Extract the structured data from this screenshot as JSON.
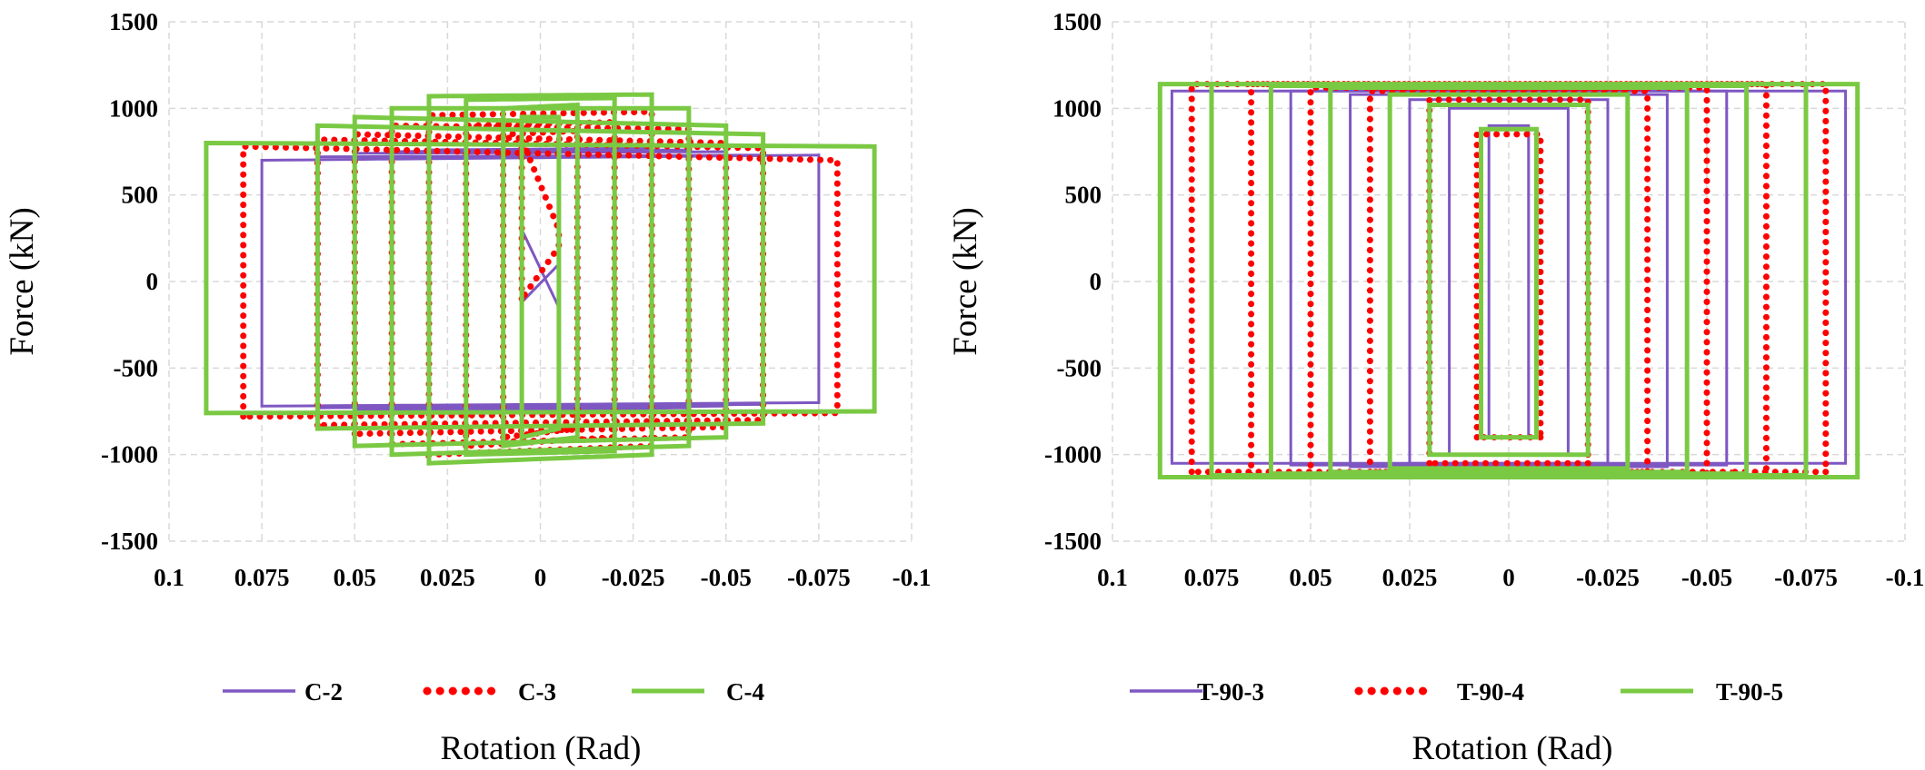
{
  "chart_data": [
    {
      "type": "line",
      "xlabel": "Rotation (Rad)",
      "ylabel": "Force (kN)",
      "xlim": [
        0.1,
        -0.1
      ],
      "ylim": [
        -1500,
        1500
      ],
      "x_ticks": [
        "0.1",
        "0.075",
        "0.05",
        "0.025",
        "0",
        "-0.025",
        "-0.05",
        "-0.075",
        "-0.1"
      ],
      "y_ticks": [
        "1500",
        "1000",
        "500",
        "0",
        "-500",
        "-1000",
        "-1500"
      ],
      "grid": true,
      "legend_position": "bottom",
      "series": [
        {
          "name": "C-2",
          "color": "#7e57c2",
          "style": "solid",
          "loops": [
            {
              "amp": 0.005,
              "top_pos": 300,
              "top_neg": -150,
              "bot_pos": -120,
              "bot_neg": 100
            },
            {
              "amp": 0.01,
              "top_pos": 730,
              "top_neg": 760,
              "bot_pos": -740,
              "bot_neg": -720
            },
            {
              "amp": 0.02,
              "top_pos": 740,
              "top_neg": 770,
              "bot_pos": -750,
              "bot_neg": -730
            },
            {
              "amp": 0.03,
              "top_pos": 760,
              "top_neg": 770,
              "bot_pos": -760,
              "bot_neg": -740
            },
            {
              "amp": 0.04,
              "top_pos": 750,
              "top_neg": 760,
              "bot_pos": -750,
              "bot_neg": -730
            },
            {
              "amp": 0.05,
              "top_pos": 740,
              "top_neg": 750,
              "bot_pos": -740,
              "bot_neg": -720
            },
            {
              "amp": 0.06,
              "top_pos": 720,
              "top_neg": 730,
              "bot_pos": -730,
              "bot_neg": -710
            },
            {
              "amp": 0.075,
              "top_pos": 700,
              "top_neg": 730,
              "bot_pos": -720,
              "bot_neg": -700
            }
          ]
        },
        {
          "name": "C-3",
          "color": "#ff0000",
          "style": "dotted",
          "loops": [
            {
              "amp": 0.005,
              "top_pos": 820,
              "top_neg": 300,
              "bot_pos": -100,
              "bot_neg": 200
            },
            {
              "amp": 0.01,
              "top_pos": 850,
              "top_neg": 870,
              "bot_pos": -900,
              "bot_neg": -850
            },
            {
              "amp": 0.02,
              "top_pos": 900,
              "top_neg": 920,
              "bot_pos": -950,
              "bot_neg": -900
            },
            {
              "amp": 0.03,
              "top_pos": 960,
              "top_neg": 980,
              "bot_pos": -1000,
              "bot_neg": -950
            },
            {
              "amp": 0.04,
              "top_pos": 900,
              "top_neg": 880,
              "bot_pos": -940,
              "bot_neg": -900
            },
            {
              "amp": 0.05,
              "top_pos": 850,
              "top_neg": 800,
              "bot_pos": -880,
              "bot_neg": -840
            },
            {
              "amp": 0.06,
              "top_pos": 820,
              "top_neg": 770,
              "bot_pos": -830,
              "bot_neg": -800
            },
            {
              "amp": 0.08,
              "top_pos": 780,
              "top_neg": 700,
              "bot_pos": -780,
              "bot_neg": -760
            }
          ]
        },
        {
          "name": "C-4",
          "color": "#7ac943",
          "style": "solid",
          "loops": [
            {
              "amp": 0.005,
              "top_pos": 950,
              "top_neg": 950,
              "bot_pos": -900,
              "bot_neg": -850
            },
            {
              "amp": 0.01,
              "top_pos": 1000,
              "top_neg": 1020,
              "bot_pos": -950,
              "bot_neg": -900
            },
            {
              "amp": 0.02,
              "top_pos": 1050,
              "top_neg": 1060,
              "bot_pos": -1000,
              "bot_neg": -980
            },
            {
              "amp": 0.03,
              "top_pos": 1070,
              "top_neg": 1080,
              "bot_pos": -1050,
              "bot_neg": -1000
            },
            {
              "amp": 0.04,
              "top_pos": 1000,
              "top_neg": 1000,
              "bot_pos": -1000,
              "bot_neg": -950
            },
            {
              "amp": 0.05,
              "top_pos": 950,
              "top_neg": 900,
              "bot_pos": -950,
              "bot_neg": -900
            },
            {
              "amp": 0.06,
              "top_pos": 900,
              "top_neg": 850,
              "bot_pos": -850,
              "bot_neg": -820
            },
            {
              "amp": 0.09,
              "top_pos": 800,
              "top_neg": 780,
              "bot_pos": -760,
              "bot_neg": -750
            }
          ]
        }
      ]
    },
    {
      "type": "line",
      "xlabel": "Rotation (Rad)",
      "ylabel": "Force (kN)",
      "xlim": [
        0.1,
        -0.1
      ],
      "ylim": [
        -1500,
        1500
      ],
      "x_ticks": [
        "0.1",
        "0.075",
        "0.05",
        "0.025",
        "0",
        "-0.025",
        "-0.05",
        "-0.075",
        "-0.1"
      ],
      "y_ticks": [
        "1500",
        "1000",
        "500",
        "0",
        "-500",
        "-1000",
        "-1500"
      ],
      "grid": true,
      "legend_position": "bottom",
      "series": [
        {
          "name": "T-90-3",
          "color": "#7e57c2",
          "style": "solid",
          "loops": [
            {
              "amp": 0.005,
              "top_pos": 900,
              "top_neg": 900,
              "bot_pos": -900,
              "bot_neg": -900
            },
            {
              "amp": 0.015,
              "top_pos": 1000,
              "top_neg": 1000,
              "bot_pos": -1000,
              "bot_neg": -1000
            },
            {
              "amp": 0.025,
              "top_pos": 1050,
              "top_neg": 1050,
              "bot_pos": -1050,
              "bot_neg": -1050
            },
            {
              "amp": 0.04,
              "top_pos": 1080,
              "top_neg": 1080,
              "bot_pos": -1070,
              "bot_neg": -1070
            },
            {
              "amp": 0.055,
              "top_pos": 1100,
              "top_neg": 1100,
              "bot_pos": -1060,
              "bot_neg": -1060
            },
            {
              "amp": 0.085,
              "top_pos": 1100,
              "top_neg": 1100,
              "bot_pos": -1050,
              "bot_neg": -1050
            }
          ]
        },
        {
          "name": "T-90-4",
          "color": "#ff0000",
          "style": "dotted",
          "loops": [
            {
              "amp": 0.008,
              "top_pos": 850,
              "top_neg": 850,
              "bot_pos": -900,
              "bot_neg": -900
            },
            {
              "amp": 0.02,
              "top_pos": 1050,
              "top_neg": 1050,
              "bot_pos": -1050,
              "bot_neg": -1050
            },
            {
              "amp": 0.035,
              "top_pos": 1100,
              "top_neg": 1100,
              "bot_pos": -1100,
              "bot_neg": -1100
            },
            {
              "amp": 0.05,
              "top_pos": 1120,
              "top_neg": 1120,
              "bot_pos": -1120,
              "bot_neg": -1120
            },
            {
              "amp": 0.065,
              "top_pos": 1140,
              "top_neg": 1140,
              "bot_pos": -1120,
              "bot_neg": -1120
            },
            {
              "amp": 0.08,
              "top_pos": 1140,
              "top_neg": 1140,
              "bot_pos": -1100,
              "bot_neg": -1100
            }
          ]
        },
        {
          "name": "T-90-5",
          "color": "#7ac943",
          "style": "solid",
          "loops": [
            {
              "amp": 0.007,
              "top_pos": 880,
              "top_neg": 880,
              "bot_pos": -900,
              "bot_neg": -900
            },
            {
              "amp": 0.02,
              "top_pos": 1020,
              "top_neg": 1020,
              "bot_pos": -1000,
              "bot_neg": -1000
            },
            {
              "amp": 0.03,
              "top_pos": 1080,
              "top_neg": 1080,
              "bot_pos": -1080,
              "bot_neg": -1080
            },
            {
              "amp": 0.045,
              "top_pos": 1120,
              "top_neg": 1120,
              "bot_pos": -1100,
              "bot_neg": -1100
            },
            {
              "amp": 0.06,
              "top_pos": 1130,
              "top_neg": 1130,
              "bot_pos": -1110,
              "bot_neg": -1110
            },
            {
              "amp": 0.075,
              "top_pos": 1140,
              "top_neg": 1140,
              "bot_pos": -1120,
              "bot_neg": -1120
            },
            {
              "amp": 0.088,
              "top_pos": 1140,
              "top_neg": 1140,
              "bot_pos": -1130,
              "bot_neg": -1130
            }
          ]
        }
      ]
    }
  ]
}
